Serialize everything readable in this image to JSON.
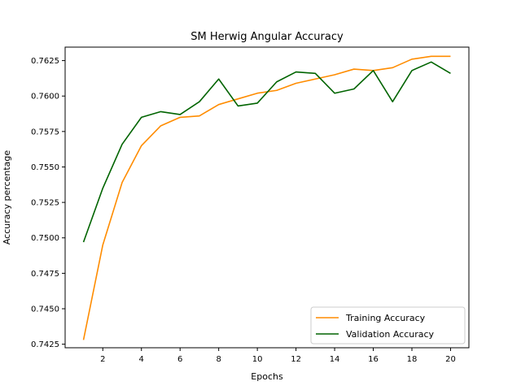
{
  "chart_data": {
    "type": "line",
    "title": "SM Herwig Angular Accuracy",
    "xlabel": "Epochs",
    "ylabel": "Accuracy percentage",
    "x": [
      1,
      2,
      3,
      4,
      5,
      6,
      7,
      8,
      9,
      10,
      11,
      12,
      13,
      14,
      15,
      16,
      17,
      18,
      19,
      20
    ],
    "xlim": [
      0.05,
      20.95
    ],
    "ylim": [
      0.74225,
      0.76345
    ],
    "xticks": [
      2,
      4,
      6,
      8,
      10,
      12,
      14,
      16,
      18,
      20
    ],
    "xtick_labels": [
      "2",
      "4",
      "6",
      "8",
      "10",
      "12",
      "14",
      "16",
      "18",
      "20"
    ],
    "yticks": [
      0.7425,
      0.745,
      0.7475,
      0.75,
      0.7525,
      0.755,
      0.7575,
      0.76,
      0.7625
    ],
    "ytick_labels": [
      "0.7425",
      "0.7450",
      "0.7475",
      "0.7500",
      "0.7525",
      "0.7550",
      "0.7575",
      "0.7600",
      "0.7625"
    ],
    "grid": false,
    "legend_position": "lower-right",
    "series": [
      {
        "name": "Training Accuracy",
        "color": "#ff8c00",
        "values": [
          0.7428,
          0.7495,
          0.7539,
          0.7565,
          0.7579,
          0.7585,
          0.7586,
          0.7594,
          0.7598,
          0.7602,
          0.7604,
          0.7609,
          0.7612,
          0.7615,
          0.7619,
          0.7618,
          0.762,
          0.7626,
          0.7628,
          0.7628
        ]
      },
      {
        "name": "Validation Accuracy",
        "color": "#006400",
        "values": [
          0.7497,
          0.7535,
          0.7566,
          0.7585,
          0.7589,
          0.7587,
          0.7596,
          0.7612,
          0.7593,
          0.7595,
          0.761,
          0.7617,
          0.7616,
          0.7602,
          0.7605,
          0.7618,
          0.7596,
          0.7618,
          0.7624,
          0.7616
        ]
      }
    ]
  }
}
